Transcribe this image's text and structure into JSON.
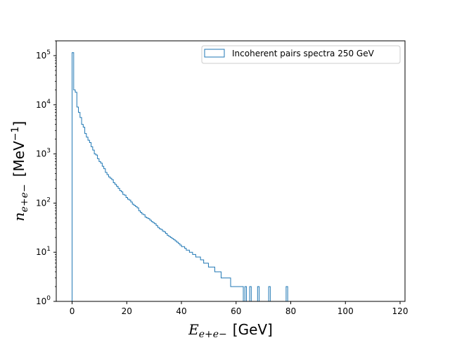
{
  "chart_data": {
    "type": "histogram",
    "histtype": "step",
    "color": "#1f77b4",
    "x_label": {
      "main": "E",
      "sub": "e+e−",
      "unit": "[GeV]"
    },
    "y_label": {
      "main": "n",
      "sub": "e+e−",
      "unit_main": "[MeV",
      "unit_sup": "−1",
      "unit_close": "]"
    },
    "xlim": [
      -5.8,
      121.8
    ],
    "ylim": [
      1,
      200000
    ],
    "yscale": "log",
    "x_ticks": [
      0,
      20,
      40,
      60,
      80,
      100,
      120
    ],
    "y_ticks": [
      {
        "value": 1,
        "base": "10",
        "exp": "0"
      },
      {
        "value": 10,
        "base": "10",
        "exp": "1"
      },
      {
        "value": 100,
        "base": "10",
        "exp": "2"
      },
      {
        "value": 1000,
        "base": "10",
        "exp": "3"
      },
      {
        "value": 10000,
        "base": "10",
        "exp": "4"
      },
      {
        "value": 100000,
        "base": "10",
        "exp": "5"
      }
    ],
    "legend": {
      "position": "top-right",
      "entries": [
        "Incoherent pairs spectra 250 GeV"
      ]
    },
    "bin_edges": {
      "start": 0,
      "width": 0.58,
      "count": 200
    },
    "counts": [
      115000,
      20000,
      18000,
      9000,
      7000,
      5500,
      4000,
      3500,
      2600,
      2200,
      1900,
      1700,
      1400,
      1200,
      1000,
      950,
      800,
      700,
      650,
      560,
      500,
      420,
      380,
      340,
      320,
      300,
      260,
      240,
      220,
      200,
      180,
      170,
      150,
      145,
      130,
      120,
      115,
      105,
      95,
      90,
      85,
      80,
      70,
      65,
      60,
      58,
      52,
      50,
      48,
      45,
      42,
      40,
      38,
      35,
      32,
      30,
      29,
      27,
      26,
      24,
      22,
      21,
      20,
      19,
      18,
      17,
      16,
      15,
      14,
      13,
      13,
      12,
      11,
      11,
      10,
      10,
      9,
      9,
      8,
      8,
      8,
      7,
      7,
      6,
      6,
      6,
      5,
      5,
      5,
      5,
      4,
      4,
      4,
      4,
      3,
      3,
      3,
      3,
      3,
      3,
      2,
      2,
      2,
      2,
      2,
      2,
      2,
      2,
      1,
      2,
      1,
      1,
      2,
      1,
      1,
      1,
      1,
      2,
      1,
      1,
      1,
      1,
      1,
      1,
      2,
      1,
      1,
      1,
      1,
      1,
      1,
      1,
      1,
      1,
      1,
      2,
      1,
      1,
      1,
      1,
      1,
      1,
      1,
      1,
      1,
      1,
      1,
      1,
      1,
      1,
      1,
      1,
      1,
      1,
      1,
      1,
      1,
      1,
      1,
      1,
      1,
      1,
      1,
      1,
      1,
      1,
      1,
      1,
      1,
      1,
      1,
      1,
      1,
      1,
      1,
      1,
      1,
      1,
      1,
      1,
      1,
      1,
      1,
      1,
      1,
      1,
      1,
      1,
      1,
      1,
      1,
      1,
      1,
      1,
      1,
      1
    ]
  }
}
